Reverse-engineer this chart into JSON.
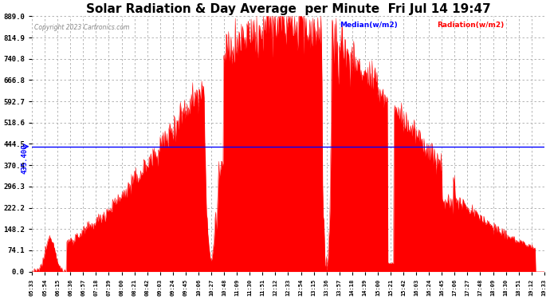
{
  "title": "Solar Radiation & Day Average  per Minute  Fri Jul 14 19:47",
  "copyright": "Copyright 2023 Cartronics.com",
  "legend_median": "Median(w/m2)",
  "legend_radiation": "Radiation(w/m2)",
  "median_value": 435.4,
  "y_max": 889.0,
  "y_min": 0.0,
  "y_ticks": [
    889.0,
    814.9,
    740.8,
    666.8,
    592.7,
    518.6,
    444.5,
    370.4,
    296.3,
    222.2,
    148.2,
    74.1,
    0.0
  ],
  "median_label": "435.400",
  "background_color": "#ffffff",
  "plot_bg_color": "#ffffff",
  "grid_color": "#aaaaaa",
  "radiation_color": "#ff0000",
  "radiation_fill": "#ff0000",
  "median_line_color": "#0000ff",
  "title_color": "#000000",
  "title_fontsize": 11,
  "tick_label_color": "#000000",
  "x_tick_labels": [
    "05:33",
    "05:54",
    "06:15",
    "06:36",
    "06:57",
    "07:18",
    "07:39",
    "08:00",
    "08:21",
    "08:42",
    "09:03",
    "09:24",
    "09:45",
    "10:06",
    "10:27",
    "10:48",
    "11:09",
    "11:30",
    "11:51",
    "12:12",
    "12:33",
    "12:54",
    "13:15",
    "13:36",
    "13:57",
    "14:18",
    "14:39",
    "15:00",
    "15:21",
    "15:42",
    "16:03",
    "16:24",
    "16:45",
    "17:06",
    "17:27",
    "17:48",
    "18:09",
    "18:30",
    "18:51",
    "19:12",
    "19:33"
  ],
  "num_points": 840
}
